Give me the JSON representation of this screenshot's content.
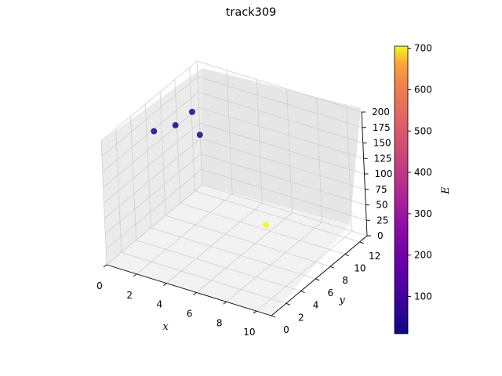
{
  "chart_data": {
    "type": "scatter",
    "projection": "3d",
    "title": "track309",
    "xlabel": "x",
    "ylabel": "y",
    "zlabel": "",
    "colorbar_label": "E",
    "colormap": "plasma",
    "xlim": [
      0,
      11
    ],
    "ylim": [
      0,
      13
    ],
    "zlim": [
      0,
      200
    ],
    "x_ticks": [
      "0",
      "2",
      "4",
      "6",
      "8",
      "10"
    ],
    "y_ticks": [
      "0",
      "2",
      "4",
      "6",
      "8",
      "10",
      "12"
    ],
    "z_ticks": [
      "0",
      "25",
      "50",
      "75",
      "100",
      "125",
      "150",
      "175",
      "200"
    ],
    "colorbar_range": [
      10,
      705
    ],
    "colorbar_ticks": [
      "100",
      "200",
      "300",
      "400",
      "500",
      "600",
      "700"
    ],
    "grid": true,
    "points": [
      {
        "x": 0.5,
        "y": 6.0,
        "z": 160,
        "E": 15
      },
      {
        "x": 1.2,
        "y": 7.5,
        "z": 160,
        "E": 30
      },
      {
        "x": 1.8,
        "y": 8.6,
        "z": 175,
        "E": 45
      },
      {
        "x": 2.2,
        "y": 8.7,
        "z": 140,
        "E": 25
      },
      {
        "x": 6.0,
        "y": 9.5,
        "z": 15,
        "E": 705
      }
    ]
  }
}
